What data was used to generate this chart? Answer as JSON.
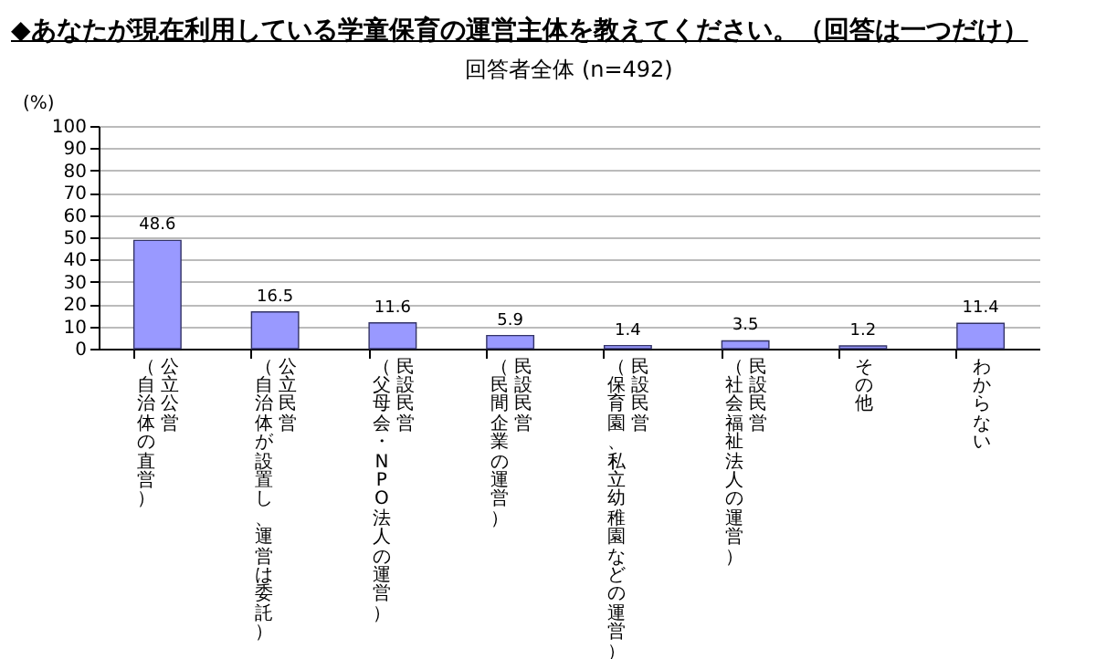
{
  "chart_data": {
    "type": "bar",
    "title": "◆あなたが現在利用している学童保育の運営主体を教えてください。（回答は一つだけ）",
    "subtitle": "回答者全体 (n=492)",
    "ylabel": "(%)",
    "categories": [
      "公立公営（自治体の直営）",
      "公立民営（自治体が設置し、運営は委託）",
      "民設民営（父母会・NPO法人の運営）",
      "民設民営（民間企業の運営）",
      "民設民営（保育園、私立幼稚園などの運営）",
      "民設民営（社会福祉法人の運営）",
      "その他",
      "わからない"
    ],
    "values": [
      48.6,
      16.5,
      11.6,
      5.9,
      1.4,
      3.5,
      1.2,
      11.4
    ],
    "color": "#9999ff",
    "ylim": [
      0,
      100
    ],
    "yticks": [
      0,
      10,
      20,
      30,
      40,
      50,
      60,
      70,
      80,
      90,
      100
    ],
    "grid": "y",
    "data_labels": true
  }
}
